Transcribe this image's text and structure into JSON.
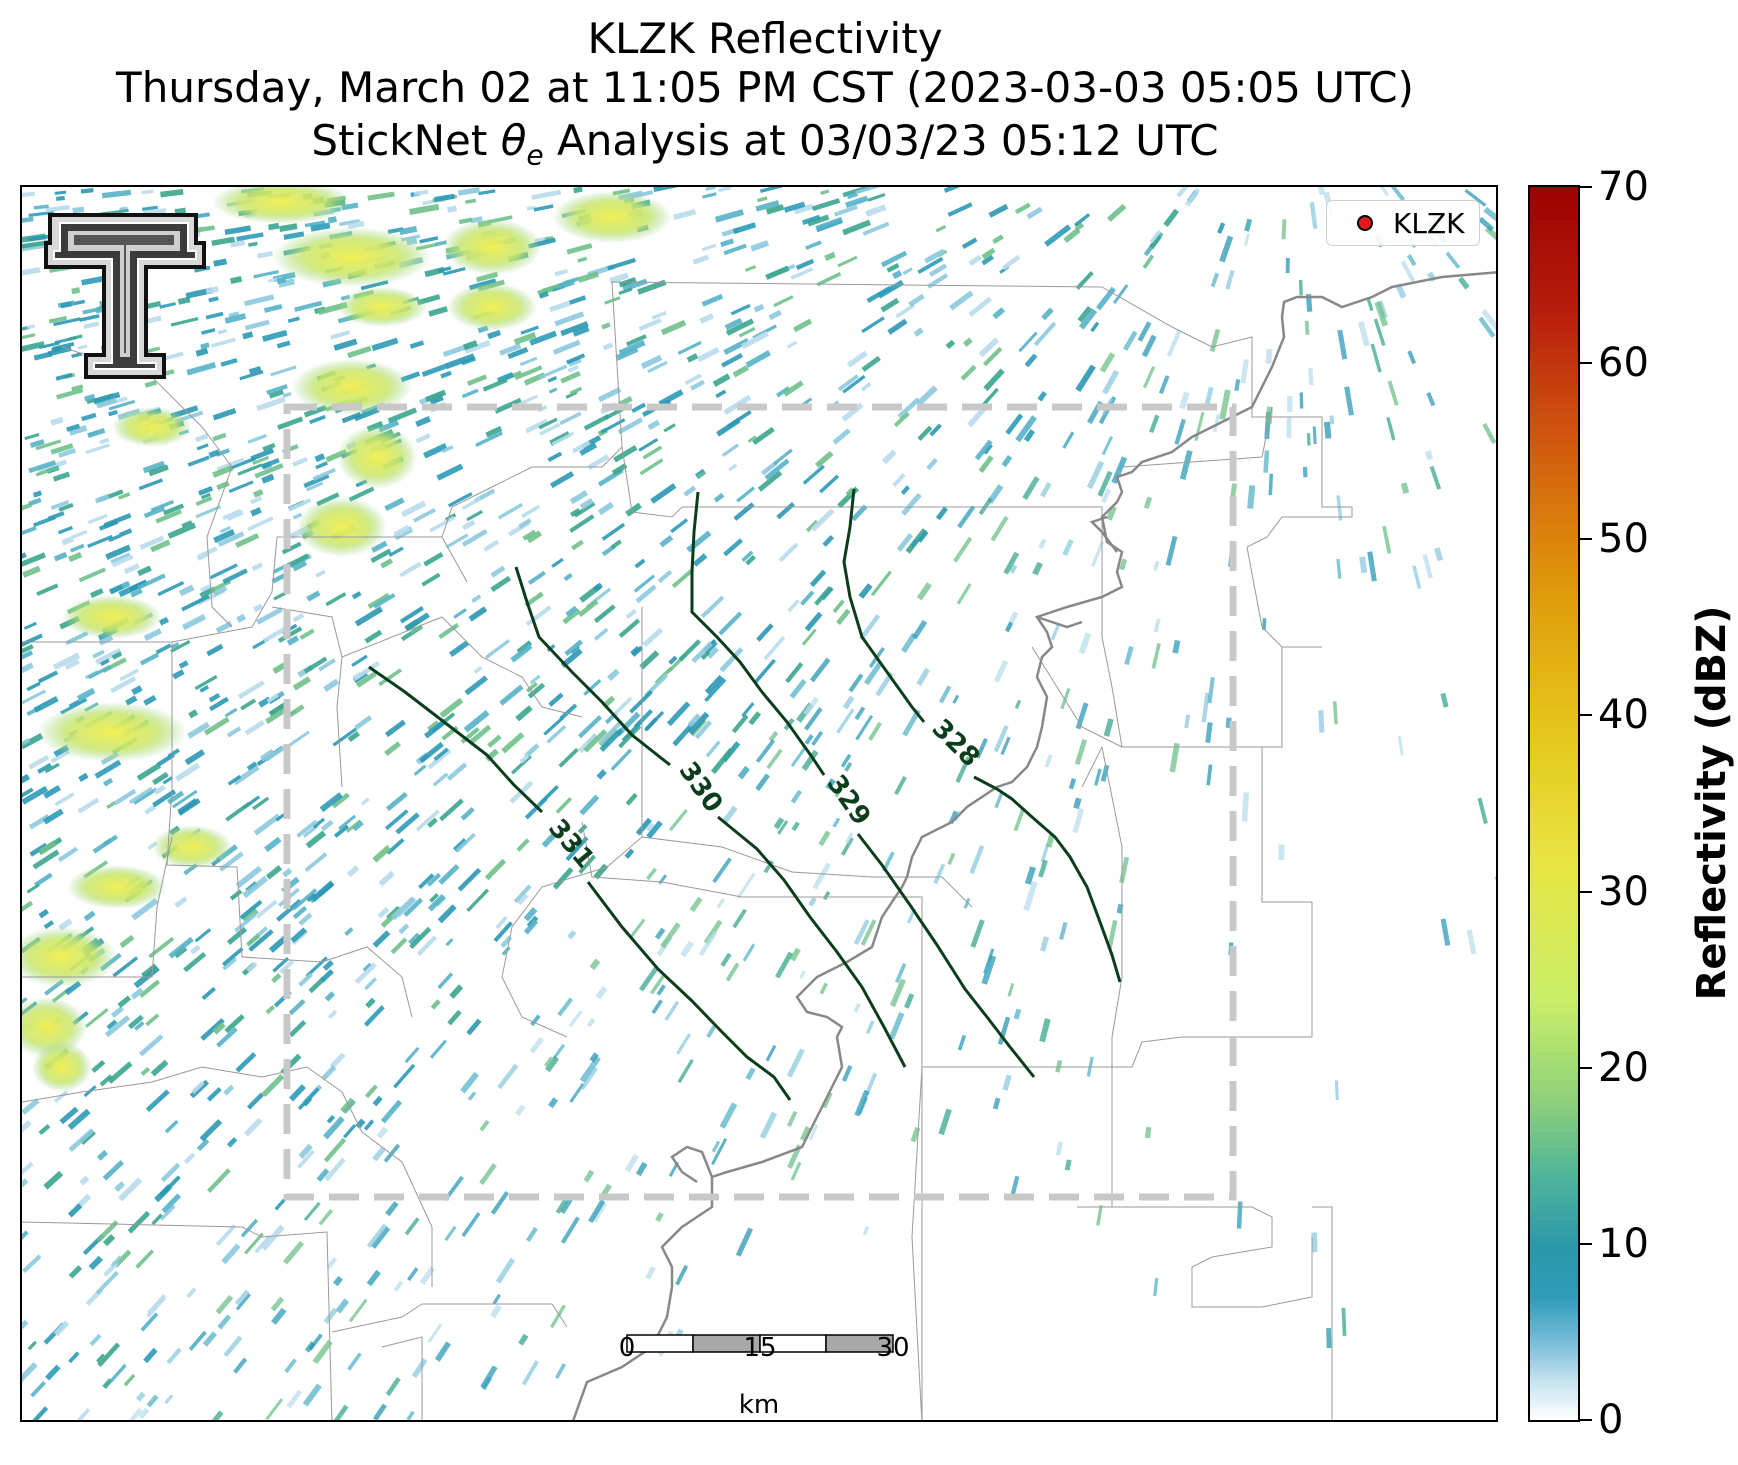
{
  "title": {
    "line1": "KLZK Reflectivity",
    "line2": "Thursday, March 02 at 11:05 PM CST (2023-03-03 05:05 UTC)",
    "line3_prefix": "StickNet ",
    "line3_symbol": "θ",
    "line3_subscript": "e",
    "line3_suffix": " Analysis at 03/03/23 05:12 UTC"
  },
  "legend": {
    "marker_color": "#e41a1c",
    "label": "KLZK"
  },
  "logo": {
    "name": "Texas Tech Double T",
    "letter": "T"
  },
  "contours": {
    "color": "#0b3d1c",
    "items": [
      {
        "label": "331",
        "value": 331
      },
      {
        "label": "330",
        "value": 330
      },
      {
        "label": "329",
        "value": 329
      },
      {
        "label": "328",
        "value": 328
      }
    ]
  },
  "analysis_box": {
    "style": "dashed",
    "color": "#c8c8c8"
  },
  "scalebar": {
    "ticks": [
      "0",
      "15",
      "30"
    ],
    "unit": "km"
  },
  "colorbar": {
    "label": "Reflectivity (dBZ)",
    "ticks": [
      "0",
      "10",
      "20",
      "30",
      "40",
      "50",
      "60",
      "70"
    ],
    "min": 0,
    "max": 70
  }
}
